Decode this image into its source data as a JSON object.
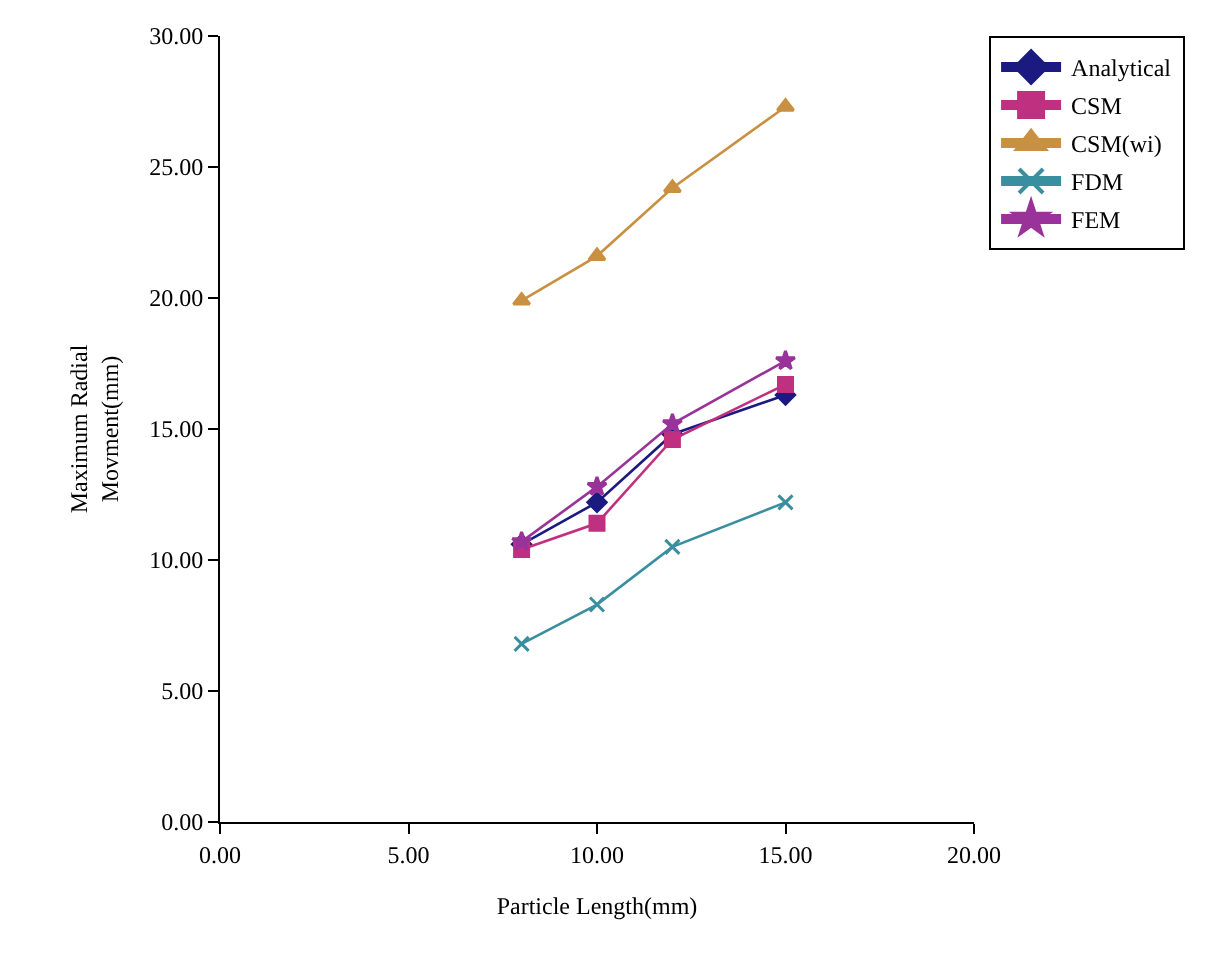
{
  "chart_data": {
    "type": "line",
    "xlabel": "Particle Length(mm)",
    "ylabel": "Maximum Radial\nMovment(mm)",
    "x": [
      8,
      10,
      12,
      15
    ],
    "series": [
      {
        "name": "Analytical",
        "color": "#1a1a80",
        "marker": "diamond",
        "values": [
          10.6,
          12.2,
          14.8,
          16.3
        ]
      },
      {
        "name": "CSM",
        "color": "#c03080",
        "marker": "square",
        "values": [
          10.4,
          11.4,
          14.6,
          16.7
        ]
      },
      {
        "name": "CSM(wi)",
        "color": "#c89040",
        "marker": "triangle",
        "values": [
          19.9,
          21.6,
          24.2,
          27.3
        ]
      },
      {
        "name": "FDM",
        "color": "#3a8f9f",
        "marker": "cross",
        "values": [
          6.8,
          8.3,
          10.5,
          12.2
        ]
      },
      {
        "name": "FEM",
        "color": "#993399",
        "marker": "star",
        "values": [
          10.7,
          12.8,
          15.2,
          17.6
        ]
      }
    ],
    "xlim": [
      0,
      20
    ],
    "xticks": [
      {
        "value": 0,
        "label": "0.00"
      },
      {
        "value": 5,
        "label": "5.00"
      },
      {
        "value": 10,
        "label": "10.00"
      },
      {
        "value": 15,
        "label": "15.00"
      },
      {
        "value": 20,
        "label": "20.00"
      }
    ],
    "ylim": [
      0,
      30
    ],
    "yticks": [
      {
        "value": 0,
        "label": "0.00"
      },
      {
        "value": 5,
        "label": "5.00"
      },
      {
        "value": 10,
        "label": "10.00"
      },
      {
        "value": 15,
        "label": "15.00"
      },
      {
        "value": 20,
        "label": "20.00"
      },
      {
        "value": 25,
        "label": "25.00"
      },
      {
        "value": 30,
        "label": "30.00"
      }
    ],
    "grid": false,
    "legend": "right",
    "line_style": "solid"
  }
}
